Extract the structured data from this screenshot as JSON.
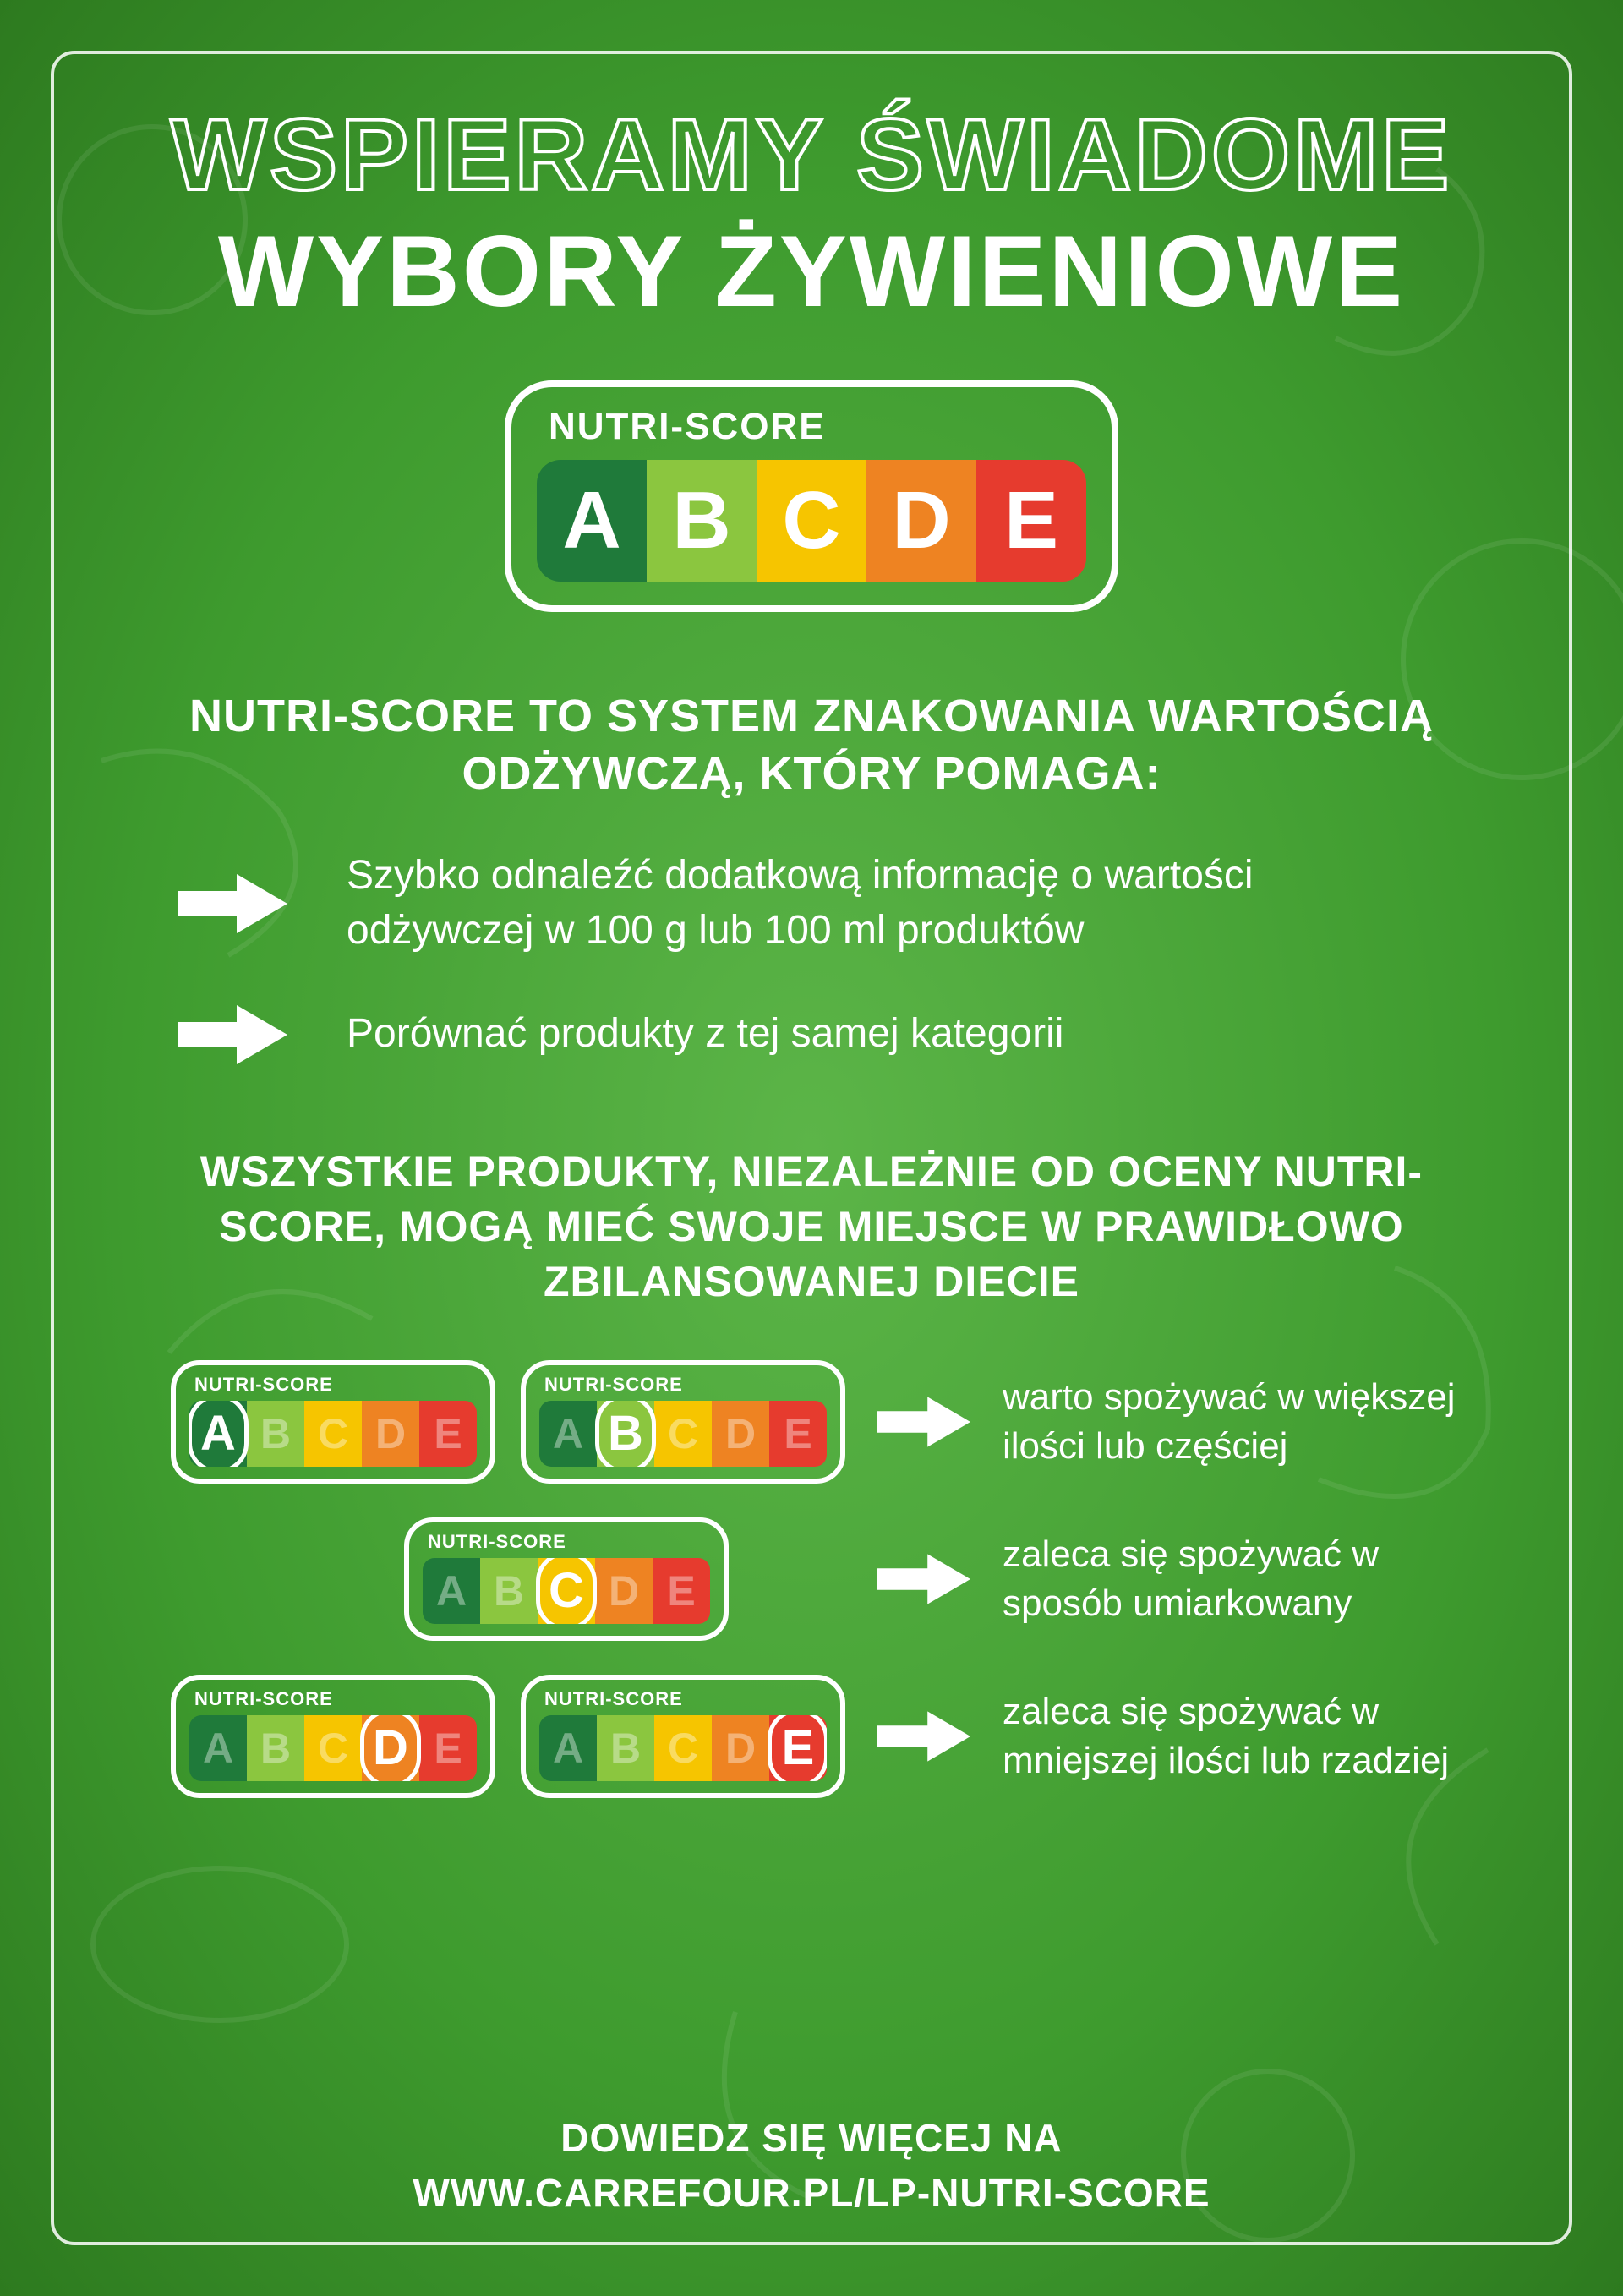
{
  "colors": {
    "bg_center": "#5cb548",
    "bg_edge": "#2d7a1f",
    "white": "#ffffff",
    "score": {
      "A": "#1f7a3a",
      "B": "#8bc63f",
      "C": "#f6c500",
      "D": "#ee8322",
      "E": "#e63b2e"
    }
  },
  "title": {
    "line1": "WSPIERAMY ŚWIADOME",
    "line2": "WYBORY ŻYWIENIOWE"
  },
  "nutri_label": "NUTRI-SCORE",
  "letters": [
    "A",
    "B",
    "C",
    "D",
    "E"
  ],
  "section1_heading": "NUTRI-SCORE TO SYSTEM ZNAKOWANIA WARTOŚCIĄ ODŻYWCZĄ, KTÓRY POMAGA:",
  "bullets": [
    "Szybko odnaleźć dodatkową informację o wartości odżywczej w 100 g lub 100 ml produktów",
    "Porównać produkty z tej samej kategorii"
  ],
  "section2_heading": "WSZYSTKIE PRODUKTY, NIEZALEŻNIE OD OCENY NUTRI-SCORE, MOGĄ MIEĆ SWOJE MIEJSCE W PRAWIDŁOWO ZBILANSOWANEJ DIECIE",
  "guide_rows": [
    {
      "highlights": [
        "A",
        "B"
      ],
      "text": "warto spożywać w większej ilości lub częściej"
    },
    {
      "highlights": [
        "C"
      ],
      "text": "zaleca się spożywać w sposób umiarkowany"
    },
    {
      "highlights": [
        "D",
        "E"
      ],
      "text": "zaleca się spożywać w mniejszej ilości lub rzadziej"
    }
  ],
  "footer": {
    "line1": "DOWIEDZ SIĘ WIĘCEJ NA",
    "line2": "WWW.CARREFOUR.PL/LP-NUTRI-SCORE"
  },
  "arrow": {
    "width": 130,
    "height": 70,
    "fill": "#ffffff"
  }
}
